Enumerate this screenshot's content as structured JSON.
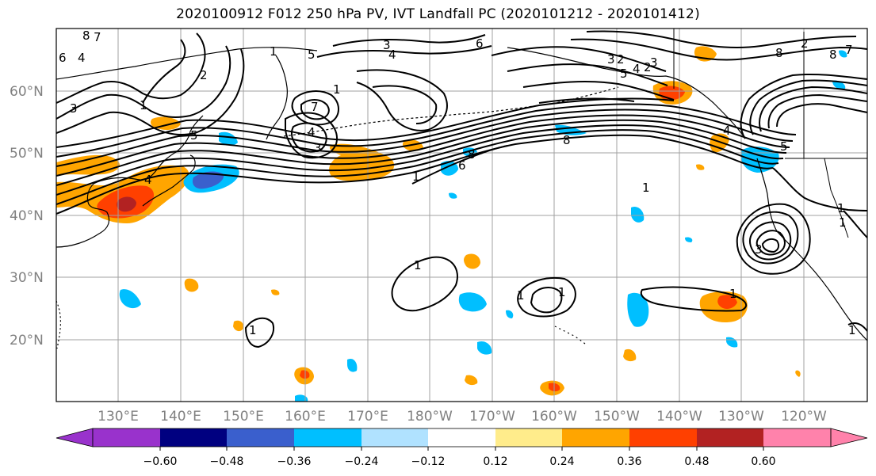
{
  "title": "2020100912 F012 250 hPa PV, IVT Landfall PC (2020101212 - 2020101412)",
  "map": {
    "lat_labels": [
      "60°N",
      "50°N",
      "40°N",
      "30°N",
      "20°N"
    ],
    "lon_labels": [
      "130°E",
      "140°E",
      "150°E",
      "160°E",
      "170°E",
      "180°W",
      "170°W",
      "160°W",
      "150°W",
      "140°W",
      "130°W",
      "120°W"
    ],
    "contour_labels": [
      "8",
      "7",
      "4",
      "6",
      "2",
      "3",
      "1",
      "3",
      "6",
      "5",
      "4",
      "1",
      "7",
      "3",
      "1",
      "4",
      "3",
      "2",
      "2",
      "4",
      "3",
      "5",
      "4",
      "8",
      "8",
      "4",
      "5",
      "1",
      "6",
      "8",
      "1",
      "1",
      "1",
      "1",
      "1",
      "1",
      "1",
      "1",
      "5",
      "8",
      "7",
      "3",
      "1",
      "2"
    ],
    "land_color": "#000000",
    "grid_color": "#a0a0a0"
  },
  "colorbar": {
    "colors": [
      "#9932cc",
      "#000080",
      "#3a5fcd",
      "#00bfff",
      "#b0e2ff",
      "#ffffff",
      "#ffec8b",
      "#ffa500",
      "#ff4000",
      "#b22222",
      "#ff82ab"
    ],
    "tick_labels": [
      "−0.60",
      "−0.48",
      "−0.36",
      "−0.24",
      "−0.12",
      "0.12",
      "0.24",
      "0.36",
      "0.48",
      "0.60"
    ],
    "levels": [
      -0.6,
      -0.48,
      -0.36,
      -0.24,
      -0.12,
      0.12,
      0.24,
      0.36,
      0.48,
      0.6
    ]
  }
}
